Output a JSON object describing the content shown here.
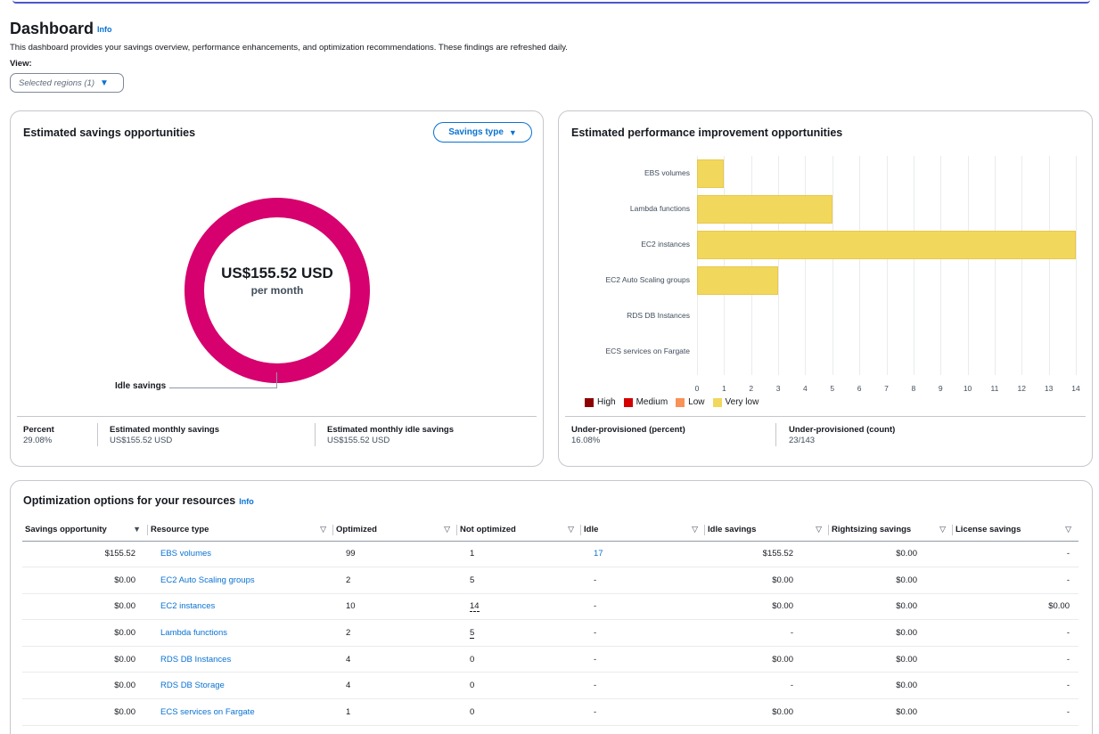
{
  "header": {
    "title": "Dashboard",
    "info": "Info",
    "description": "This dashboard provides your savings overview, performance enhancements, and optimization recommendations. These findings are refreshed daily.",
    "view_label": "View:",
    "region_select": "Selected regions (1)"
  },
  "savings_panel": {
    "title": "Estimated savings opportunities",
    "savings_type_button": "Savings type",
    "donut_value": "US$155.52 USD",
    "donut_sub": "per month",
    "segment_label": "Idle savings",
    "color": "#d6006e",
    "metrics": [
      {
        "label": "Percent",
        "value": "29.08%"
      },
      {
        "label": "Estimated monthly savings",
        "value": "US$155.52 USD"
      },
      {
        "label": "Estimated monthly idle savings",
        "value": "US$155.52 USD"
      }
    ]
  },
  "performance_panel": {
    "title": "Estimated performance improvement opportunities",
    "metrics": [
      {
        "label": "Under-provisioned (percent)",
        "value": "16.08%"
      },
      {
        "label": "Under-provisioned (count)",
        "value": "23/143"
      }
    ]
  },
  "chart_data": {
    "type": "bar",
    "orientation": "horizontal",
    "title": "Estimated performance improvement opportunities",
    "categories": [
      "EBS volumes",
      "Lambda functions",
      "EC2 instances",
      "EC2 Auto Scaling groups",
      "RDS DB Instances",
      "ECS services on Fargate"
    ],
    "series": [
      {
        "name": "High",
        "color": "#8c0000",
        "values": [
          0,
          0,
          0,
          0,
          0,
          0
        ]
      },
      {
        "name": "Medium",
        "color": "#d40000",
        "values": [
          0,
          0,
          0,
          0,
          0,
          0
        ]
      },
      {
        "name": "Low",
        "color": "#f89256",
        "values": [
          0,
          0,
          0,
          0,
          0,
          0
        ]
      },
      {
        "name": "Very low",
        "color": "#f2d75d",
        "values": [
          1,
          5,
          14,
          3,
          0,
          0
        ]
      }
    ],
    "xlim": [
      0,
      14
    ],
    "xticks": [
      "0",
      "1",
      "2",
      "3",
      "4",
      "5",
      "6",
      "7",
      "8",
      "9",
      "10",
      "11",
      "12",
      "13",
      "14"
    ],
    "grid": true,
    "legend": "bottom-left"
  },
  "optimization": {
    "title": "Optimization options for your resources",
    "info": "Info",
    "columns": [
      "Savings opportunity",
      "Resource type",
      "Optimized",
      "Not optimized",
      "Idle",
      "Idle savings",
      "Rightsizing savings",
      "License savings"
    ],
    "rows": [
      [
        "$155.52",
        "EBS volumes",
        "99",
        "1",
        "17",
        "$155.52",
        "$0.00",
        "-"
      ],
      [
        "$0.00",
        "EC2 Auto Scaling groups",
        "2",
        "5",
        "-",
        "$0.00",
        "$0.00",
        "-"
      ],
      [
        "$0.00",
        "EC2 instances",
        "10",
        "14",
        "-",
        "$0.00",
        "$0.00",
        "$0.00"
      ],
      [
        "$0.00",
        "Lambda functions",
        "2",
        "5",
        "-",
        "-",
        "$0.00",
        "-"
      ],
      [
        "$0.00",
        "RDS DB Instances",
        "4",
        "0",
        "-",
        "$0.00",
        "$0.00",
        "-"
      ],
      [
        "$0.00",
        "RDS DB Storage",
        "4",
        "0",
        "-",
        "-",
        "$0.00",
        "-"
      ],
      [
        "$0.00",
        "ECS services on Fargate",
        "1",
        "0",
        "-",
        "$0.00",
        "$0.00",
        "-"
      ]
    ]
  }
}
